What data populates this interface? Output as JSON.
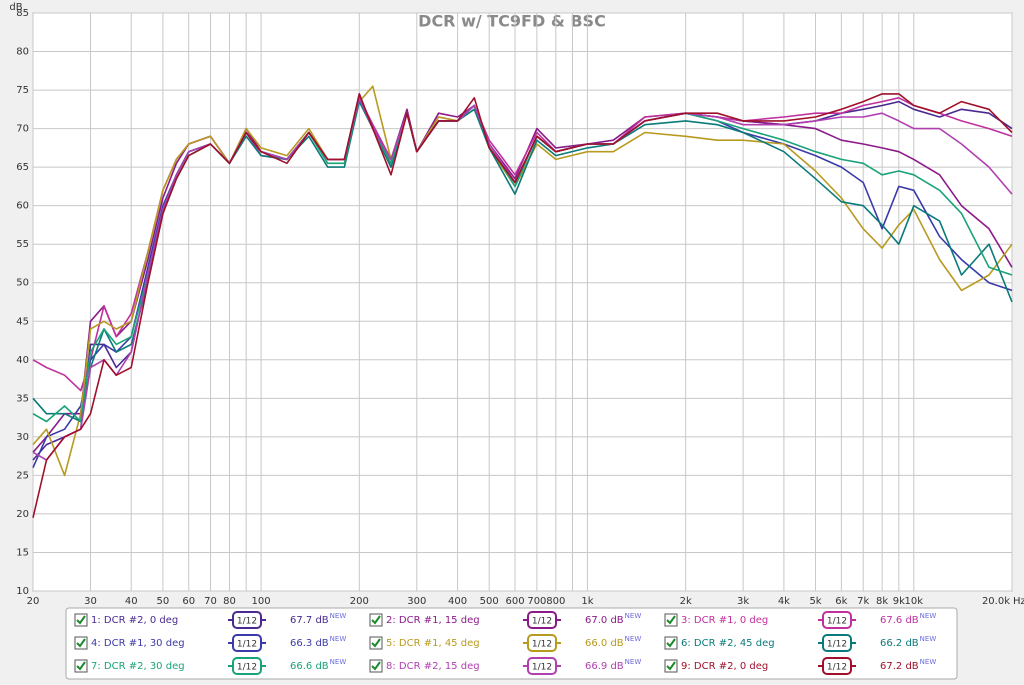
{
  "chart_data": {
    "type": "line",
    "title": "DCR w/ TC9FD & BSC",
    "y_label": "dB",
    "x_unit": "Hz",
    "xscale": "log",
    "grid": true,
    "xlim": [
      20,
      20000
    ],
    "ylim": [
      10,
      85
    ],
    "xticks": [
      20,
      30,
      40,
      50,
      60,
      70,
      80,
      100,
      200,
      300,
      400,
      500,
      600,
      700,
      800,
      {
        "value": 1000,
        "label": "1k"
      },
      {
        "value": 2000,
        "label": "2k"
      },
      {
        "value": 3000,
        "label": "3k"
      },
      {
        "value": 4000,
        "label": "4k"
      },
      {
        "value": 5000,
        "label": "5k"
      },
      {
        "value": 6000,
        "label": "6k"
      },
      {
        "value": 7000,
        "label": "7k"
      },
      {
        "value": 8000,
        "label": "8k"
      },
      {
        "value": 9000,
        "label": "9k"
      },
      {
        "value": 10000,
        "label": "10k"
      },
      {
        "value": 20000,
        "label": "20.0k"
      }
    ],
    "x_minor_ticks": [
      90,
      900
    ],
    "yticks": [
      10,
      15,
      20,
      25,
      30,
      35,
      40,
      45,
      50,
      55,
      60,
      65,
      70,
      75,
      80,
      85
    ],
    "x": [
      20,
      22,
      25,
      28,
      30,
      33,
      36,
      40,
      45,
      50,
      55,
      60,
      70,
      80,
      90,
      100,
      120,
      140,
      160,
      180,
      200,
      220,
      250,
      280,
      300,
      350,
      400,
      450,
      500,
      600,
      700,
      800,
      1000,
      1200,
      1500,
      2000,
      2500,
      3000,
      4000,
      5000,
      6000,
      7000,
      8000,
      9000,
      10000,
      12000,
      14000,
      17000,
      20000
    ],
    "series": [
      {
        "name": "1: DCR #2, 0 deg",
        "color": "#4a2a90",
        "smoothing": "1/12",
        "level": "67.7 dB",
        "badge": "NEW",
        "values": [
          27,
          29,
          30,
          31,
          42,
          42,
          39,
          41,
          51,
          59,
          64,
          67,
          68,
          65.5,
          69.5,
          67,
          66,
          69.5,
          66,
          66,
          74.5,
          70,
          65,
          72,
          67,
          71,
          71,
          73,
          68,
          63,
          69,
          67,
          68,
          68,
          71,
          72,
          71.5,
          71,
          70.5,
          71,
          72,
          72.5,
          73,
          73.5,
          72.5,
          71.5,
          72.5,
          72,
          70
        ]
      },
      {
        "name": "2: DCR #1, 15 deg",
        "color": "#8a1a8a",
        "smoothing": "1/12",
        "level": "67.0 dB",
        "badge": "NEW",
        "values": [
          28,
          30,
          33,
          33,
          45,
          47,
          43,
          45,
          53,
          61,
          65.5,
          68,
          69,
          65.5,
          70,
          67,
          66,
          69.5,
          66,
          66,
          74,
          70.5,
          66,
          72.5,
          67,
          72,
          71.5,
          73,
          68,
          63.5,
          70,
          67.5,
          68,
          68.5,
          71.5,
          72,
          71.5,
          71,
          70.5,
          70,
          68.5,
          68,
          67.5,
          67,
          66,
          64,
          60,
          57,
          52
        ]
      },
      {
        "name": "3: DCR #1, 0 deg",
        "color": "#c0309f",
        "smoothing": "1/12",
        "level": "67.6 dB",
        "badge": "NEW",
        "values": [
          40,
          39,
          38,
          36,
          40,
          47,
          43,
          46,
          54,
          62,
          66,
          68,
          69,
          65.5,
          69.5,
          66.5,
          66,
          69.5,
          66,
          66,
          74,
          70.5,
          66,
          72,
          67,
          71.5,
          71,
          73,
          68.5,
          64,
          69.5,
          67,
          68,
          68,
          71.5,
          72,
          71.5,
          71,
          71.5,
          72,
          72,
          73,
          73.5,
          74,
          73,
          72,
          71,
          70,
          69
        ]
      },
      {
        "name": "4: DCR #1, 30 deg",
        "color": "#3a3aaa",
        "smoothing": "1/12",
        "level": "66.3 dB",
        "badge": "NEW",
        "values": [
          26,
          30,
          31,
          34,
          40,
          42,
          41,
          43,
          52,
          60,
          64,
          67,
          68,
          65.5,
          69.5,
          67,
          66,
          69.5,
          66,
          66,
          74,
          70,
          66,
          72,
          67,
          71,
          71,
          73,
          68,
          63,
          69,
          67,
          68,
          68,
          71,
          72,
          71,
          69.5,
          68,
          66.5,
          65,
          63,
          57,
          62.5,
          62,
          56,
          53,
          50,
          49
        ]
      },
      {
        "name": "5: DCR #1, 45 deg",
        "color": "#b89a20",
        "smoothing": "1/12",
        "level": "66.0 dB",
        "badge": "NEW",
        "values": [
          29,
          31,
          25,
          33,
          44,
          45,
          44,
          45,
          54,
          62,
          66,
          68,
          69,
          65.5,
          70,
          67.5,
          66.5,
          70,
          66,
          66,
          73.5,
          75.5,
          66,
          72,
          67,
          71.5,
          71,
          73,
          67.5,
          62.5,
          68,
          66,
          67,
          67,
          69.5,
          69,
          68.5,
          68.5,
          68,
          64.5,
          61,
          57,
          54.5,
          57.5,
          59.5,
          53,
          49,
          51,
          55
        ]
      },
      {
        "name": "6: DCR #2, 45 deg",
        "color": "#0a7a7a",
        "smoothing": "1/12",
        "level": "66.2 dB",
        "badge": "NEW",
        "values": [
          35,
          33,
          33,
          32,
          39,
          44,
          41,
          42,
          50,
          59,
          63.5,
          66.5,
          68,
          65.5,
          69,
          66.5,
          66,
          69,
          65,
          65,
          73.5,
          70,
          65,
          72,
          67,
          71,
          71,
          72.5,
          67.5,
          61.5,
          68.5,
          66.5,
          67.5,
          68,
          70.5,
          71,
          70.5,
          69.5,
          67,
          63.5,
          60.5,
          60,
          57.5,
          55,
          60,
          58,
          51,
          55,
          47.5
        ]
      },
      {
        "name": "7: DCR #2, 30 deg",
        "color": "#1aa37a",
        "smoothing": "1/12",
        "level": "66.6 dB",
        "badge": "NEW",
        "values": [
          33,
          32,
          34,
          32,
          41,
          44,
          42,
          43,
          51,
          59.5,
          64,
          67,
          68,
          65.5,
          69.5,
          67,
          66,
          69.5,
          65.5,
          65.5,
          74,
          70,
          65.5,
          72,
          67,
          71,
          71,
          73,
          68,
          62.5,
          69,
          67,
          68,
          68,
          71,
          72,
          71,
          70,
          68.5,
          67,
          66,
          65.5,
          64,
          64.5,
          64,
          62,
          59,
          52,
          51
        ]
      },
      {
        "name": "8: DCR #2, 15 deg",
        "color": "#b040b0",
        "smoothing": "1/12",
        "level": "66.9 dB",
        "badge": "NEW",
        "values": [
          28,
          27,
          30,
          31,
          39,
          40,
          38,
          41,
          51,
          59.5,
          64,
          67,
          68,
          65.5,
          69.5,
          67,
          66,
          69.5,
          66,
          66,
          74,
          70,
          66,
          72,
          67,
          71,
          71,
          73,
          68,
          63,
          69,
          67,
          68,
          68,
          71,
          72,
          71.5,
          70.5,
          70.5,
          71,
          71.5,
          71.5,
          72,
          71,
          70,
          70,
          68,
          65,
          61.5
        ]
      },
      {
        "name": "9: DCR #2, 0 deg",
        "color": "#a0102a",
        "smoothing": "1/12",
        "level": "67.2 dB",
        "badge": "NEW",
        "values": [
          19.5,
          27,
          30,
          31,
          33,
          40,
          38,
          39,
          50,
          59,
          63.5,
          66.5,
          68,
          65.5,
          69.5,
          67,
          65.5,
          69.5,
          66,
          66,
          74.5,
          70,
          64,
          72,
          67,
          71,
          71,
          74,
          67.5,
          63,
          69,
          67,
          68,
          68,
          71,
          72,
          72,
          71,
          71,
          71.5,
          72.5,
          73.5,
          74.5,
          74.5,
          73,
          72,
          73.5,
          72.5,
          69.5
        ]
      }
    ]
  }
}
